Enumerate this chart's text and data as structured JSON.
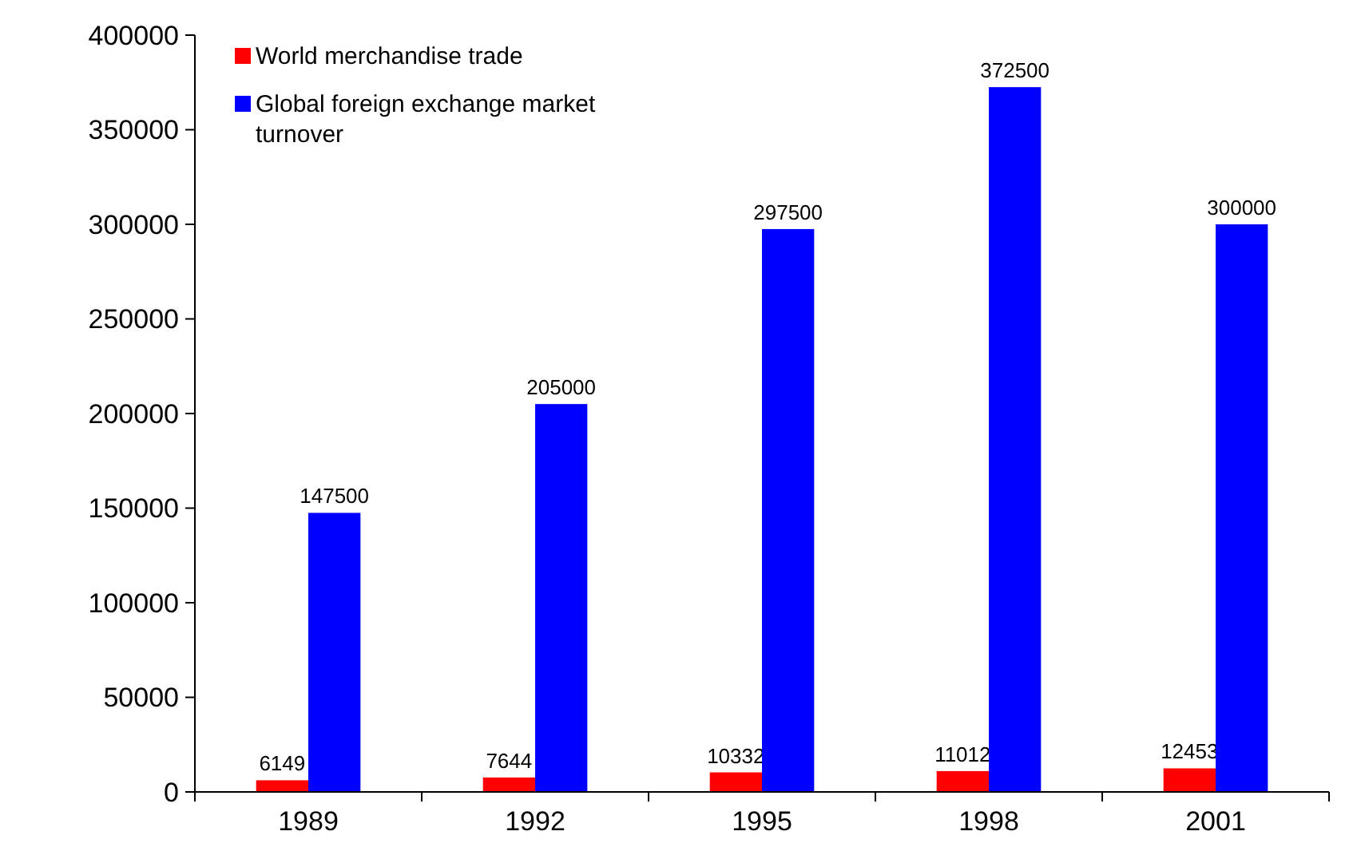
{
  "chart_data": {
    "type": "bar",
    "categories": [
      "1989",
      "1992",
      "1995",
      "1998",
      "2001"
    ],
    "series": [
      {
        "name": "World merchandise trade",
        "color": "#ff0000",
        "values": [
          6149,
          7644,
          10332,
          11012,
          12453
        ]
      },
      {
        "name": "Global foreign exchange market turnover",
        "color": "#0000ff",
        "values": [
          147500,
          205000,
          297500,
          372500,
          300000
        ]
      }
    ],
    "ylim": [
      0,
      400000
    ],
    "yticks": [
      0,
      50000,
      100000,
      150000,
      200000,
      250000,
      300000,
      350000,
      400000
    ],
    "data_labels": true,
    "grid": false,
    "legend": "top left"
  }
}
